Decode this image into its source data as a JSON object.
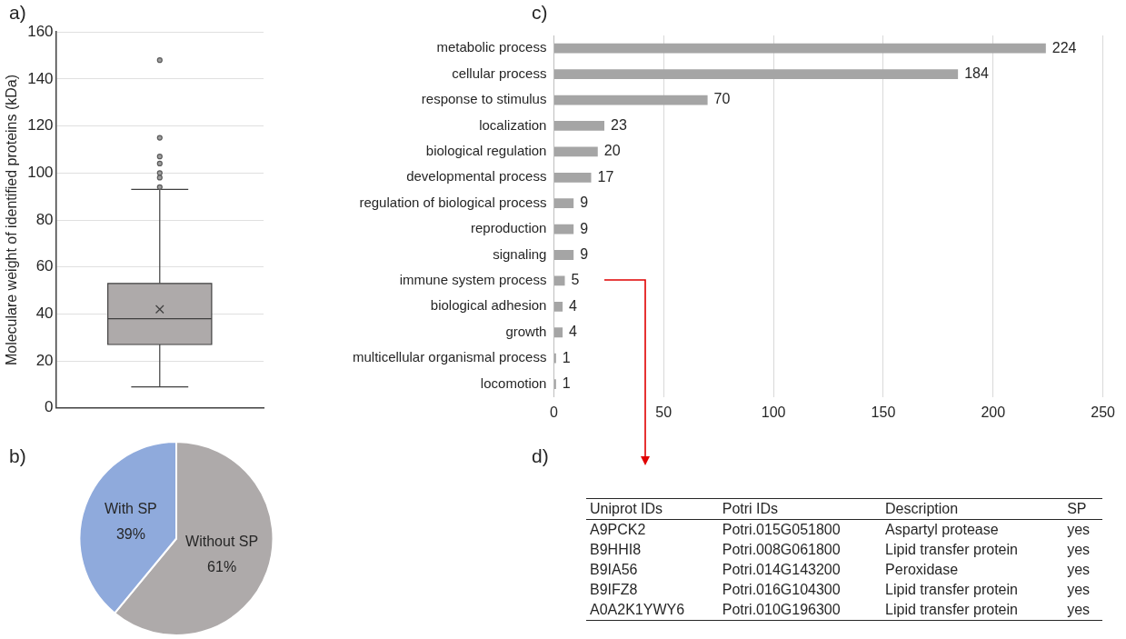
{
  "chart_data": [
    {
      "type": "box",
      "title": "a)",
      "ylabel": "Moleculare weight of identified proteins (kDa)",
      "categories": [
        null
      ],
      "color": "#aeaaaa",
      "boxes": [
        {
          "low": 9,
          "q1": 27,
          "median": 38,
          "q3": 53,
          "high": 93,
          "mean": 42,
          "outliers": [
            148,
            115,
            107,
            104,
            100,
            98,
            94
          ]
        }
      ],
      "ylim": [
        0,
        160
      ],
      "yticks": [
        0,
        20,
        40,
        60,
        80,
        100,
        120,
        140,
        160
      ],
      "grid": "y"
    },
    {
      "type": "pie",
      "title": "b)",
      "categories": [
        "Without SP",
        "With SP"
      ],
      "values": [
        61,
        39
      ],
      "colors": [
        "#aeaaaa",
        "#8faadc"
      ],
      "value_labels": [
        "61%",
        "39%"
      ]
    },
    {
      "type": "bar",
      "title": "c)",
      "orientation": "horizontal",
      "color": "#a5a5a5",
      "categories": [
        "metabolic process",
        "cellular process",
        "response to stimulus",
        "localization",
        "biological regulation",
        "developmental process",
        "regulation of biological process",
        "reproduction",
        "signaling",
        "immune system process",
        "biological adhesion",
        "growth",
        "multicellular organismal process",
        "locomotion"
      ],
      "values": [
        224,
        184,
        70,
        23,
        20,
        17,
        9,
        9,
        9,
        5,
        4,
        4,
        1,
        1
      ],
      "xlim": [
        0,
        250
      ],
      "xticks": [
        0,
        50,
        100,
        150,
        200,
        250
      ],
      "grid": "x",
      "data_labels": true
    },
    {
      "type": "other",
      "title": "d)",
      "categories": [
        "Uniprot IDs",
        "Potri IDs",
        "Description",
        "SP"
      ],
      "cell_labels": [
        [
          "A9PCK2",
          "Potri.015G051800",
          "Aspartyl protease",
          "yes"
        ],
        [
          "B9HHI8",
          "Potri.008G061800",
          "Lipid transfer protein",
          "yes"
        ],
        [
          "B9IA56",
          "Potri.014G143200",
          "Peroxidase",
          "yes"
        ],
        [
          "B9IFZ8",
          "Potri.016G104300",
          "Lipid transfer protein",
          "yes"
        ],
        [
          "A0A2K1YWY6",
          "Potri.010G196300",
          "Lipid transfer protein",
          "yes"
        ]
      ]
    }
  ]
}
